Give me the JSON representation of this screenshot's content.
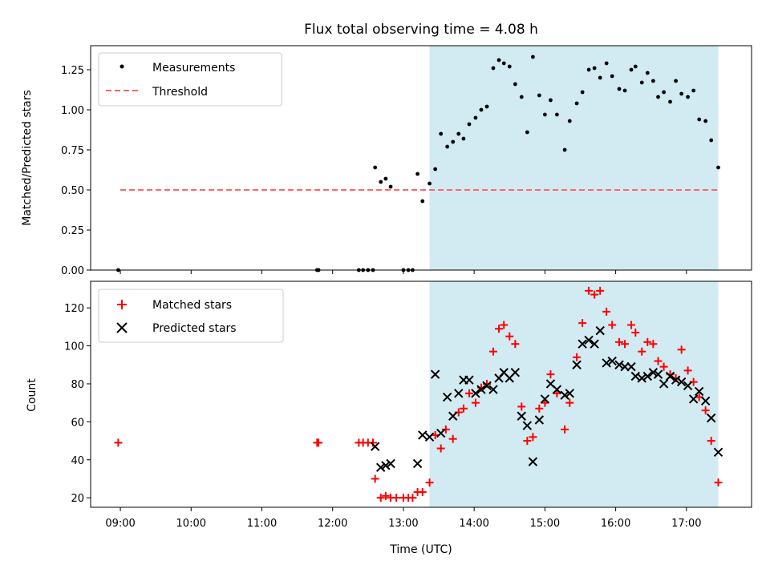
{
  "chart_data": {
    "title": "Flux total observing time = 4.08 h",
    "xlabel": "Time (UTC)",
    "x_tick_labels": [
      "09:00",
      "10:00",
      "11:00",
      "12:00",
      "13:00",
      "14:00",
      "15:00",
      "16:00",
      "17:00"
    ],
    "x_ticks_hours": [
      9,
      10,
      11,
      12,
      13,
      14,
      15,
      16,
      17
    ],
    "xlim": [
      8.58,
      17.92
    ],
    "shaded_span": [
      13.37,
      17.45
    ],
    "colors": {
      "shade": "#add8e6",
      "matched": "#ff0000",
      "predicted": "#000000",
      "threshold": "#ff6666",
      "measurements": "#000000"
    },
    "panels": [
      {
        "type": "scatter",
        "ylabel": "Matched/Predicted stars",
        "ylim": [
          0,
          1.4
        ],
        "y_ticks": [
          0,
          0.25,
          0.5,
          0.75,
          1.0,
          1.25
        ],
        "y_tick_labels": [
          "0.00",
          "0.25",
          "0.50",
          "0.75",
          "1.00",
          "1.25"
        ],
        "legend": {
          "position": "upper-left",
          "entries": [
            "Measurements",
            "Threshold"
          ]
        },
        "threshold": {
          "value": 0.5,
          "x_range": [
            9.0,
            17.45
          ]
        },
        "measurements": [
          [
            8.97,
            0.0
          ],
          [
            11.78,
            0.0
          ],
          [
            11.8,
            0.0
          ],
          [
            12.37,
            0.0
          ],
          [
            12.43,
            0.0
          ],
          [
            12.5,
            0.0
          ],
          [
            12.57,
            0.0
          ],
          [
            13.0,
            0.0
          ],
          [
            13.07,
            0.0
          ],
          [
            13.13,
            0.0
          ],
          [
            12.6,
            0.64
          ],
          [
            12.68,
            0.55
          ],
          [
            12.75,
            0.57
          ],
          [
            12.82,
            0.52
          ],
          [
            13.2,
            0.6
          ],
          [
            13.27,
            0.43
          ],
          [
            13.37,
            0.54
          ],
          [
            13.45,
            0.63
          ],
          [
            13.53,
            0.85
          ],
          [
            13.62,
            0.77
          ],
          [
            13.7,
            0.8
          ],
          [
            13.78,
            0.85
          ],
          [
            13.85,
            0.82
          ],
          [
            13.93,
            0.91
          ],
          [
            14.02,
            0.95
          ],
          [
            14.1,
            1.0
          ],
          [
            14.18,
            1.02
          ],
          [
            14.27,
            1.26
          ],
          [
            14.35,
            1.31
          ],
          [
            14.42,
            1.29
          ],
          [
            14.5,
            1.27
          ],
          [
            14.58,
            1.16
          ],
          [
            14.67,
            1.08
          ],
          [
            14.75,
            0.86
          ],
          [
            14.83,
            1.33
          ],
          [
            14.92,
            1.09
          ],
          [
            15.0,
            0.97
          ],
          [
            15.08,
            1.06
          ],
          [
            15.17,
            0.97
          ],
          [
            15.28,
            0.75
          ],
          [
            15.35,
            0.93
          ],
          [
            15.45,
            1.04
          ],
          [
            15.53,
            1.11
          ],
          [
            15.62,
            1.25
          ],
          [
            15.7,
            1.26
          ],
          [
            15.78,
            1.2
          ],
          [
            15.87,
            1.29
          ],
          [
            15.95,
            1.21
          ],
          [
            16.05,
            1.13
          ],
          [
            16.13,
            1.12
          ],
          [
            16.22,
            1.25
          ],
          [
            16.28,
            1.27
          ],
          [
            16.37,
            1.17
          ],
          [
            16.45,
            1.23
          ],
          [
            16.53,
            1.18
          ],
          [
            16.6,
            1.08
          ],
          [
            16.68,
            1.11
          ],
          [
            16.77,
            1.05
          ],
          [
            16.85,
            1.18
          ],
          [
            16.93,
            1.1
          ],
          [
            17.02,
            1.08
          ],
          [
            17.1,
            1.12
          ],
          [
            17.18,
            0.94
          ],
          [
            17.27,
            0.93
          ],
          [
            17.35,
            0.81
          ],
          [
            17.45,
            0.64
          ]
        ]
      },
      {
        "type": "scatter",
        "ylabel": "Count",
        "ylim": [
          15,
          134
        ],
        "y_ticks": [
          20,
          40,
          60,
          80,
          100,
          120
        ],
        "y_tick_labels": [
          "20",
          "40",
          "60",
          "80",
          "100",
          "120"
        ],
        "legend": {
          "position": "upper-left",
          "entries": [
            "Matched stars",
            "Predicted stars"
          ]
        },
        "matched": [
          [
            8.97,
            49
          ],
          [
            11.78,
            49
          ],
          [
            11.8,
            49
          ],
          [
            12.37,
            49
          ],
          [
            12.43,
            49
          ],
          [
            12.5,
            49
          ],
          [
            12.57,
            49
          ],
          [
            12.6,
            30
          ],
          [
            12.68,
            20
          ],
          [
            12.75,
            21
          ],
          [
            12.82,
            20
          ],
          [
            12.9,
            20
          ],
          [
            13.0,
            20
          ],
          [
            13.07,
            20
          ],
          [
            13.13,
            20
          ],
          [
            13.2,
            23
          ],
          [
            13.27,
            23
          ],
          [
            13.37,
            28
          ],
          [
            13.45,
            53
          ],
          [
            13.53,
            46
          ],
          [
            13.6,
            56
          ],
          [
            13.7,
            51
          ],
          [
            13.78,
            65
          ],
          [
            13.85,
            67
          ],
          [
            13.93,
            75
          ],
          [
            14.02,
            70
          ],
          [
            14.1,
            78
          ],
          [
            14.18,
            80
          ],
          [
            14.27,
            97
          ],
          [
            14.35,
            109
          ],
          [
            14.42,
            111
          ],
          [
            14.5,
            105
          ],
          [
            14.58,
            101
          ],
          [
            14.67,
            68
          ],
          [
            14.75,
            50
          ],
          [
            14.83,
            52
          ],
          [
            14.92,
            67
          ],
          [
            15.0,
            70
          ],
          [
            15.08,
            85
          ],
          [
            15.17,
            75
          ],
          [
            15.28,
            56
          ],
          [
            15.35,
            70
          ],
          [
            15.45,
            94
          ],
          [
            15.53,
            112
          ],
          [
            15.62,
            129
          ],
          [
            15.7,
            127
          ],
          [
            15.78,
            129
          ],
          [
            15.87,
            118
          ],
          [
            15.95,
            111
          ],
          [
            16.05,
            102
          ],
          [
            16.13,
            101
          ],
          [
            16.22,
            111
          ],
          [
            16.28,
            107
          ],
          [
            16.37,
            97
          ],
          [
            16.45,
            102
          ],
          [
            16.53,
            101
          ],
          [
            16.6,
            92
          ],
          [
            16.68,
            89
          ],
          [
            16.77,
            85
          ],
          [
            16.85,
            83
          ],
          [
            16.93,
            98
          ],
          [
            17.02,
            87
          ],
          [
            17.1,
            81
          ],
          [
            17.18,
            73
          ],
          [
            17.27,
            66
          ],
          [
            17.35,
            50
          ],
          [
            17.45,
            28
          ]
        ],
        "predicted": [
          [
            12.6,
            47
          ],
          [
            12.68,
            36
          ],
          [
            12.75,
            37
          ],
          [
            12.82,
            38
          ],
          [
            13.2,
            38
          ],
          [
            13.27,
            53
          ],
          [
            13.37,
            52
          ],
          [
            13.45,
            85
          ],
          [
            13.53,
            54
          ],
          [
            13.62,
            73
          ],
          [
            13.7,
            63
          ],
          [
            13.78,
            75
          ],
          [
            13.85,
            82
          ],
          [
            13.93,
            82
          ],
          [
            14.02,
            75
          ],
          [
            14.1,
            77
          ],
          [
            14.18,
            79
          ],
          [
            14.27,
            77
          ],
          [
            14.35,
            83
          ],
          [
            14.42,
            86
          ],
          [
            14.5,
            83
          ],
          [
            14.58,
            86
          ],
          [
            14.67,
            63
          ],
          [
            14.75,
            58
          ],
          [
            14.83,
            39
          ],
          [
            14.92,
            61
          ],
          [
            15.0,
            72
          ],
          [
            15.08,
            80
          ],
          [
            15.17,
            77
          ],
          [
            15.28,
            74
          ],
          [
            15.35,
            75
          ],
          [
            15.45,
            90
          ],
          [
            15.53,
            101
          ],
          [
            15.62,
            103
          ],
          [
            15.7,
            101
          ],
          [
            15.78,
            108
          ],
          [
            15.87,
            91
          ],
          [
            15.95,
            92
          ],
          [
            16.05,
            90
          ],
          [
            16.13,
            89
          ],
          [
            16.22,
            89
          ],
          [
            16.28,
            84
          ],
          [
            16.37,
            83
          ],
          [
            16.45,
            84
          ],
          [
            16.53,
            86
          ],
          [
            16.6,
            85
          ],
          [
            16.68,
            80
          ],
          [
            16.77,
            84
          ],
          [
            16.85,
            82
          ],
          [
            16.93,
            81
          ],
          [
            17.02,
            79
          ],
          [
            17.1,
            72
          ],
          [
            17.18,
            76
          ],
          [
            17.27,
            71
          ],
          [
            17.35,
            62
          ],
          [
            17.45,
            44
          ]
        ]
      }
    ]
  }
}
